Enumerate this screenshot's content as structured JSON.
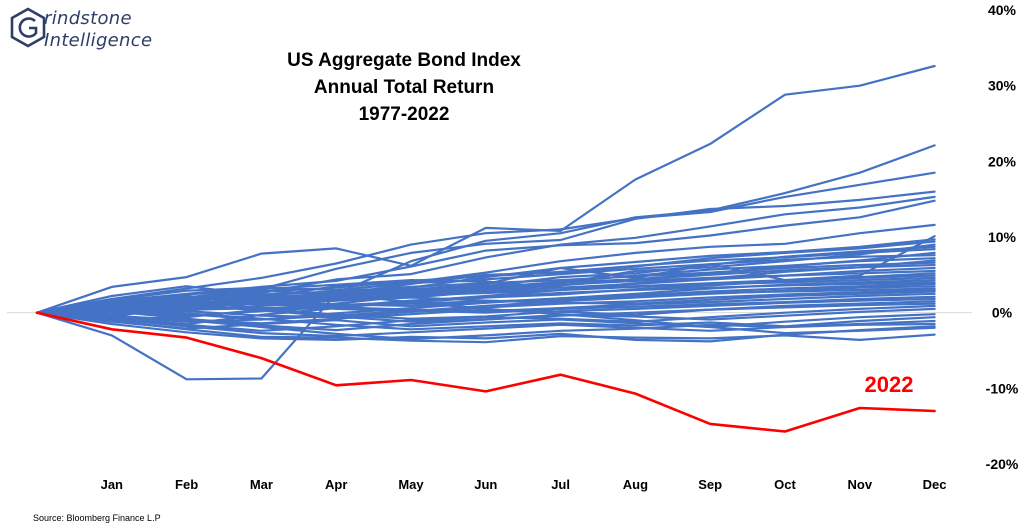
{
  "logo": {
    "line1": "rindstone",
    "line2": "Intelligence"
  },
  "source": "Source: Bloomberg Finance L.P",
  "colors": {
    "series": "#4472c4",
    "highlight": "#ff0000",
    "axis": "#d9d9d9"
  },
  "chart_data": {
    "type": "line",
    "title": [
      "US Aggregate Bond Index",
      "Annual Total Return",
      "1977-2022"
    ],
    "xlabel": "",
    "ylabel": "",
    "categories": [
      "",
      "Jan",
      "Feb",
      "Mar",
      "Apr",
      "May",
      "Jun",
      "Jul",
      "Aug",
      "Sep",
      "Oct",
      "Nov",
      "Dec"
    ],
    "ylim": [
      -20,
      40
    ],
    "yticks": [
      -20,
      -10,
      0,
      10,
      20,
      30,
      40
    ],
    "ytick_labels": [
      "-20%",
      "-10%",
      "0%",
      "10%",
      "20%",
      "30%",
      "40%"
    ],
    "y_axis_position": "right",
    "grid": false,
    "annotation": {
      "text": "2022",
      "color": "#ff0000"
    },
    "series": [
      {
        "values": [
          0,
          3.4,
          4.7,
          7.8,
          8.5,
          6.2,
          11.2,
          10.8,
          17.6,
          22.3,
          28.8,
          30.0,
          32.6
        ]
      },
      {
        "values": [
          0,
          -3.0,
          -8.8,
          -8.7,
          2.5,
          6.8,
          9.5,
          10.5,
          12.6,
          13.5,
          15.8,
          18.5,
          22.1
        ]
      },
      {
        "values": [
          0,
          1.8,
          3.2,
          4.6,
          6.5,
          9.0,
          10.5,
          11.0,
          12.5,
          13.3,
          15.3,
          16.9,
          18.5
        ]
      },
      {
        "values": [
          0,
          1.2,
          2.0,
          3.1,
          5.8,
          7.9,
          9.1,
          9.6,
          12.4,
          13.7,
          14.1,
          14.9,
          16.0
        ]
      },
      {
        "values": [
          0,
          0.9,
          1.8,
          2.6,
          4.4,
          5.1,
          7.3,
          9.0,
          9.9,
          11.4,
          13.0,
          13.9,
          15.3
        ]
      },
      {
        "values": [
          0,
          1.5,
          2.5,
          3.4,
          4.2,
          6.1,
          8.2,
          8.9,
          9.2,
          10.2,
          11.5,
          12.6,
          14.8
        ]
      },
      {
        "values": [
          0,
          0.6,
          1.1,
          2.0,
          3.5,
          4.0,
          5.3,
          6.8,
          7.9,
          8.7,
          9.1,
          10.5,
          11.6
        ]
      },
      {
        "values": [
          0,
          2.2,
          3.5,
          2.3,
          1.6,
          3.0,
          3.8,
          5.9,
          4.6,
          6.4,
          4.3,
          4.9,
          10.1
        ]
      },
      {
        "values": [
          0,
          0.3,
          0.9,
          1.8,
          2.6,
          3.3,
          4.7,
          5.9,
          6.7,
          7.5,
          8.0,
          8.7,
          9.7
        ]
      },
      {
        "values": [
          0,
          1.0,
          0.4,
          1.6,
          2.4,
          3.8,
          5.0,
          5.3,
          6.1,
          7.2,
          7.9,
          8.5,
          9.4
        ]
      },
      {
        "values": [
          0,
          1.4,
          2.2,
          1.0,
          1.9,
          2.7,
          3.1,
          3.9,
          5.5,
          6.0,
          6.8,
          7.7,
          9.0
        ]
      },
      {
        "values": [
          0,
          -0.4,
          0.5,
          1.3,
          2.1,
          2.9,
          3.5,
          4.7,
          5.2,
          6.3,
          7.4,
          8.1,
          8.7
        ]
      },
      {
        "values": [
          0,
          0.8,
          1.6,
          2.8,
          3.3,
          4.2,
          4.8,
          5.4,
          6.2,
          6.9,
          7.3,
          7.9,
          8.4
        ]
      },
      {
        "values": [
          0,
          0.2,
          -0.6,
          0.4,
          1.2,
          2.2,
          3.0,
          3.6,
          4.4,
          5.2,
          6.1,
          6.9,
          7.9
        ]
      },
      {
        "values": [
          0,
          1.7,
          2.9,
          3.3,
          3.0,
          3.9,
          4.4,
          5.1,
          5.8,
          6.4,
          7.0,
          7.4,
          7.6
        ]
      },
      {
        "values": [
          0,
          0.5,
          1.2,
          1.9,
          2.0,
          2.5,
          3.2,
          4.1,
          4.9,
          5.7,
          6.2,
          6.8,
          7.2
        ]
      },
      {
        "values": [
          0,
          -0.8,
          -1.5,
          -0.3,
          0.6,
          1.5,
          2.2,
          3.0,
          3.9,
          4.5,
          5.4,
          6.0,
          6.9
        ]
      },
      {
        "values": [
          0,
          1.1,
          1.4,
          2.4,
          2.8,
          3.4,
          3.9,
          4.3,
          4.8,
          5.3,
          5.9,
          6.3,
          6.6
        ]
      },
      {
        "values": [
          0,
          0.4,
          0.8,
          1.5,
          2.3,
          2.9,
          3.4,
          4.0,
          4.4,
          5.0,
          5.6,
          6.0,
          6.3
        ]
      },
      {
        "values": [
          0,
          -0.2,
          0.3,
          0.9,
          1.6,
          2.0,
          2.8,
          3.3,
          3.8,
          4.4,
          4.9,
          5.5,
          5.9
        ]
      },
      {
        "values": [
          0,
          0.9,
          1.7,
          2.1,
          2.5,
          3.1,
          3.6,
          3.7,
          4.2,
          4.6,
          4.9,
          5.2,
          5.5
        ]
      },
      {
        "values": [
          0,
          0.1,
          -0.4,
          0.2,
          1.0,
          1.4,
          2.0,
          2.4,
          3.1,
          3.6,
          4.2,
          4.7,
          5.2
        ]
      },
      {
        "values": [
          0,
          1.3,
          2.4,
          3.1,
          3.7,
          4.3,
          4.1,
          3.3,
          3.5,
          3.9,
          4.3,
          4.6,
          4.9
        ]
      },
      {
        "values": [
          0,
          0.6,
          0.9,
          1.2,
          1.8,
          2.3,
          2.6,
          3.0,
          3.4,
          3.8,
          4.0,
          4.3,
          4.6
        ]
      },
      {
        "values": [
          0,
          -0.6,
          -1.2,
          -0.9,
          -0.1,
          0.6,
          1.3,
          1.9,
          2.5,
          3.2,
          3.7,
          4.0,
          4.3
        ]
      },
      {
        "values": [
          0,
          0.7,
          1.3,
          1.1,
          0.8,
          1.6,
          2.1,
          2.6,
          3.0,
          3.3,
          3.6,
          3.8,
          4.0
        ]
      },
      {
        "values": [
          0,
          0.3,
          0.7,
          1.4,
          1.1,
          0.9,
          1.4,
          1.9,
          2.3,
          2.8,
          3.2,
          3.5,
          3.8
        ]
      },
      {
        "values": [
          0,
          1.6,
          2.1,
          1.6,
          0.5,
          0.2,
          0.9,
          1.5,
          2.0,
          2.5,
          2.9,
          3.3,
          3.5
        ]
      },
      {
        "values": [
          0,
          -0.3,
          0.4,
          0.6,
          0.9,
          1.2,
          1.5,
          1.7,
          2.2,
          2.6,
          2.8,
          3.0,
          3.2
        ]
      },
      {
        "values": [
          0,
          0.8,
          0.2,
          -0.4,
          -0.6,
          0.1,
          0.7,
          1.2,
          1.5,
          2.0,
          2.4,
          2.7,
          3.0
        ]
      },
      {
        "values": [
          0,
          0.2,
          0.9,
          1.7,
          2.3,
          2.0,
          1.6,
          1.3,
          1.2,
          1.7,
          2.2,
          2.5,
          2.8
        ]
      },
      {
        "values": [
          0,
          -1.0,
          -0.5,
          0.3,
          0.7,
          0.4,
          0.2,
          0.6,
          1.1,
          1.4,
          1.8,
          2.2,
          2.5
        ]
      },
      {
        "values": [
          0,
          0.4,
          -0.2,
          -0.9,
          -0.4,
          0.3,
          0.0,
          0.5,
          0.8,
          1.1,
          1.4,
          1.8,
          2.1
        ]
      },
      {
        "values": [
          0,
          1.0,
          1.5,
          0.6,
          -0.3,
          -0.8,
          -0.5,
          0.2,
          0.5,
          0.9,
          1.3,
          1.6,
          1.8
        ]
      },
      {
        "values": [
          0,
          -0.5,
          -0.9,
          -1.4,
          -0.8,
          -0.2,
          0.4,
          0.1,
          -0.3,
          0.4,
          0.9,
          1.2,
          1.5
        ]
      },
      {
        "values": [
          0,
          0.5,
          1.0,
          0.3,
          -0.5,
          -1.2,
          -0.9,
          -0.4,
          0.0,
          0.4,
          0.7,
          1.0,
          1.2
        ]
      },
      {
        "values": [
          0,
          -0.7,
          -1.6,
          -2.4,
          -1.8,
          -1.0,
          -0.6,
          -0.8,
          -1.2,
          -0.6,
          0.0,
          0.5,
          0.9
        ]
      },
      {
        "values": [
          0,
          0.2,
          -0.8,
          -1.7,
          -2.3,
          -1.5,
          -0.9,
          -0.3,
          -0.5,
          -0.9,
          -0.4,
          0.1,
          0.5
        ]
      },
      {
        "values": [
          0,
          -1.2,
          -2.1,
          -1.5,
          -1.0,
          -1.8,
          -1.3,
          -0.9,
          -1.4,
          -1.9,
          -1.2,
          -0.6,
          -0.2
        ]
      },
      {
        "values": [
          0,
          0.6,
          -0.1,
          -0.8,
          -1.6,
          -2.2,
          -1.8,
          -1.4,
          -1.7,
          -1.3,
          -1.8,
          -1.1,
          -0.6
        ]
      },
      {
        "values": [
          0,
          -0.9,
          -1.8,
          -2.7,
          -3.1,
          -2.6,
          -2.1,
          -1.6,
          -2.0,
          -2.4,
          -1.9,
          -1.5,
          -1.1
        ]
      },
      {
        "values": [
          0,
          -0.4,
          -1.0,
          -1.9,
          -2.8,
          -3.5,
          -3.0,
          -2.4,
          -2.1,
          -1.6,
          -1.9,
          -1.6,
          -1.5
        ]
      },
      {
        "values": [
          0,
          -1.5,
          -2.6,
          -3.4,
          -3.6,
          -3.2,
          -3.4,
          -2.8,
          -3.6,
          -3.8,
          -2.9,
          -2.3,
          -1.8
        ]
      },
      {
        "values": [
          0,
          0.9,
          1.8,
          2.9,
          2.4,
          1.4,
          0.5,
          -0.2,
          -1.0,
          -1.9,
          -2.7,
          -2.4,
          -2.0
        ]
      },
      {
        "values": [
          0,
          -1.1,
          -2.2,
          -3.2,
          -3.3,
          -3.7,
          -3.9,
          -3.1,
          -3.3,
          -3.4,
          -3.0,
          -3.6,
          -2.9
        ]
      },
      {
        "values": [
          0,
          -2.2,
          -3.3,
          -6.0,
          -9.6,
          -8.9,
          -10.4,
          -8.2,
          -10.7,
          -14.7,
          -15.7,
          -12.6,
          -13.0
        ],
        "highlight": true
      }
    ]
  }
}
